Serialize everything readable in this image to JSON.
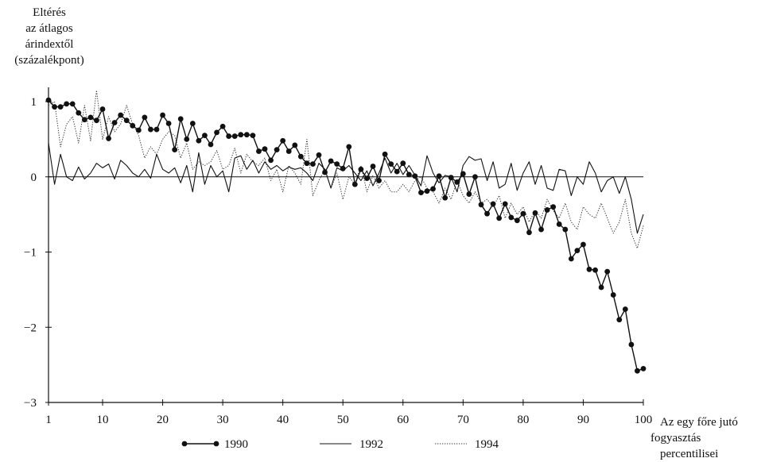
{
  "chart_data": {
    "type": "line",
    "ylabel_lines": [
      "Eltérés",
      "az átlagos",
      "árindextől",
      "(százalékpont)"
    ],
    "xlabel_lines": [
      "Az egy főre jutó",
      "fogyasztás",
      "percentilisei"
    ],
    "xlim": [
      1,
      100
    ],
    "ylim": [
      -3,
      1.2
    ],
    "xticks": [
      1,
      10,
      20,
      30,
      40,
      50,
      60,
      70,
      80,
      90,
      100
    ],
    "yticks": [
      1,
      0,
      -1,
      -2,
      -3
    ],
    "ytick_labels": [
      "1",
      "0",
      "−1",
      "−2",
      "−3"
    ],
    "legend_position": "bottom",
    "grid": false,
    "series": [
      {
        "name": "1990",
        "style": "line-dots",
        "values": [
          1.02,
          0.93,
          0.93,
          0.97,
          0.97,
          0.85,
          0.76,
          0.79,
          0.75,
          0.9,
          0.51,
          0.72,
          0.82,
          0.75,
          0.68,
          0.62,
          0.79,
          0.63,
          0.63,
          0.82,
          0.71,
          0.36,
          0.77,
          0.5,
          0.71,
          0.48,
          0.55,
          0.43,
          0.59,
          0.67,
          0.54,
          0.54,
          0.56,
          0.56,
          0.55,
          0.34,
          0.37,
          0.22,
          0.36,
          0.48,
          0.34,
          0.42,
          0.27,
          0.18,
          0.17,
          0.29,
          0.06,
          0.21,
          0.17,
          0.11,
          0.4,
          -0.1,
          0.1,
          -0.02,
          0.14,
          -0.05,
          0.3,
          0.17,
          0.07,
          0.18,
          0.03,
          0.01,
          -0.21,
          -0.19,
          -0.16,
          0.01,
          -0.28,
          -0.01,
          -0.07,
          0.04,
          -0.23,
          0.0,
          -0.37,
          -0.49,
          -0.36,
          -0.55,
          -0.36,
          -0.54,
          -0.58,
          -0.49,
          -0.74,
          -0.48,
          -0.7,
          -0.44,
          -0.4,
          -0.63,
          -0.7,
          -1.09,
          -0.98,
          -0.9,
          -1.23,
          -1.24,
          -1.47,
          -1.26,
          -1.57,
          -1.9,
          -1.76,
          -2.23,
          -2.58,
          -2.55
        ]
      },
      {
        "name": "1992",
        "style": "solid",
        "values": [
          0.45,
          -0.1,
          0.3,
          0.0,
          -0.05,
          0.13,
          -0.03,
          0.05,
          0.18,
          0.12,
          0.17,
          -0.03,
          0.22,
          0.15,
          0.05,
          0.0,
          0.1,
          -0.02,
          0.3,
          0.1,
          0.05,
          0.12,
          -0.08,
          0.15,
          -0.2,
          0.32,
          -0.1,
          0.15,
          0.0,
          0.08,
          -0.2,
          0.25,
          0.28,
          0.1,
          0.22,
          0.05,
          0.2,
          0.1,
          0.15,
          0.08,
          0.13,
          0.1,
          0.12,
          0.05,
          -0.05,
          0.18,
          0.1,
          -0.15,
          0.12,
          0.08,
          0.15,
          0.05,
          -0.05,
          0.08,
          -0.12,
          0.05,
          0.25,
          0.05,
          0.18,
          0.03,
          0.15,
          0.02,
          -0.12,
          0.28,
          0.05,
          -0.08,
          0.02,
          0.0,
          -0.2,
          0.15,
          0.27,
          0.22,
          0.24,
          -0.05,
          0.2,
          -0.15,
          -0.1,
          0.18,
          -0.18,
          0.05,
          0.2,
          -0.1,
          0.15,
          -0.15,
          -0.18,
          0.1,
          0.08,
          -0.25,
          0.0,
          -0.1,
          0.2,
          0.05,
          -0.2,
          -0.05,
          0.0,
          -0.22,
          0.0,
          -0.3,
          -0.75,
          -0.5
        ]
      },
      {
        "name": "1994",
        "style": "dotted",
        "values": [
          0.95,
          1.0,
          0.4,
          0.7,
          0.8,
          0.45,
          0.95,
          0.48,
          1.15,
          0.5,
          0.8,
          0.6,
          0.7,
          0.95,
          0.7,
          0.55,
          0.25,
          0.4,
          0.3,
          0.5,
          0.6,
          0.55,
          0.25,
          0.45,
          0.1,
          0.2,
          0.15,
          0.2,
          0.35,
          0.1,
          0.15,
          0.38,
          0.05,
          0.3,
          0.2,
          0.15,
          0.25,
          -0.05,
          0.1,
          -0.2,
          0.15,
          0.05,
          -0.1,
          0.5,
          -0.25,
          -0.05,
          0.1,
          -0.15,
          0.05,
          -0.3,
          0.0,
          -0.1,
          0.15,
          -0.2,
          0.02,
          -0.15,
          -0.05,
          -0.2,
          -0.2,
          -0.1,
          -0.2,
          -0.05,
          0.0,
          -0.15,
          -0.2,
          -0.35,
          -0.15,
          -0.3,
          -0.05,
          -0.25,
          -0.35,
          -0.2,
          -0.35,
          -0.3,
          -0.4,
          -0.25,
          -0.55,
          -0.35,
          -0.5,
          -0.4,
          -0.6,
          -0.45,
          -0.55,
          -0.3,
          -0.45,
          -0.55,
          -0.35,
          -0.6,
          -0.7,
          -0.4,
          -0.5,
          -0.55,
          -0.35,
          -0.55,
          -0.75,
          -0.6,
          -0.3,
          -0.75,
          -0.95,
          -0.65
        ]
      }
    ]
  }
}
